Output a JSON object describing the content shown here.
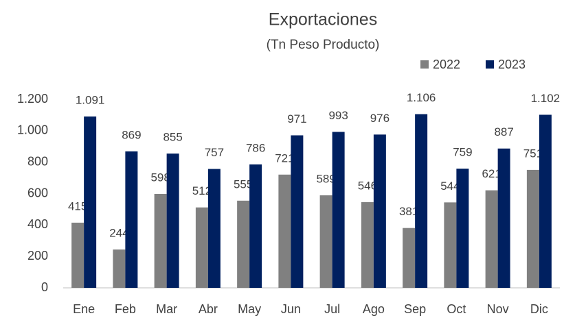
{
  "chart_data": {
    "type": "bar",
    "title": "Exportaciones",
    "subtitle": "(Tn Peso Producto)",
    "categories": [
      "Ene",
      "Feb",
      "Mar",
      "Abr",
      "May",
      "Jun",
      "Jul",
      "Ago",
      "Sep",
      "Oct",
      "Nov",
      "Dic"
    ],
    "series": [
      {
        "name": "2022",
        "color": "#808080",
        "values": [
          415,
          244,
          598,
          512,
          555,
          721,
          589,
          546,
          381,
          544,
          621,
          751
        ]
      },
      {
        "name": "2023",
        "color": "#002060",
        "values": [
          1091,
          869,
          855,
          757,
          786,
          971,
          993,
          976,
          1106,
          759,
          887,
          1102
        ],
        "value_labels": [
          "1.091",
          "869",
          "855",
          "757",
          "786",
          "971",
          "993",
          "976",
          "1.106",
          "759",
          "887",
          "1.102"
        ]
      }
    ],
    "ylim": [
      0,
      1200
    ],
    "yticks": [
      0,
      200,
      400,
      600,
      800,
      {
        "value": 1000,
        "label": "1.000"
      },
      {
        "value": 1200,
        "label": "1.200"
      }
    ],
    "grid": false,
    "legend": "top-right"
  }
}
